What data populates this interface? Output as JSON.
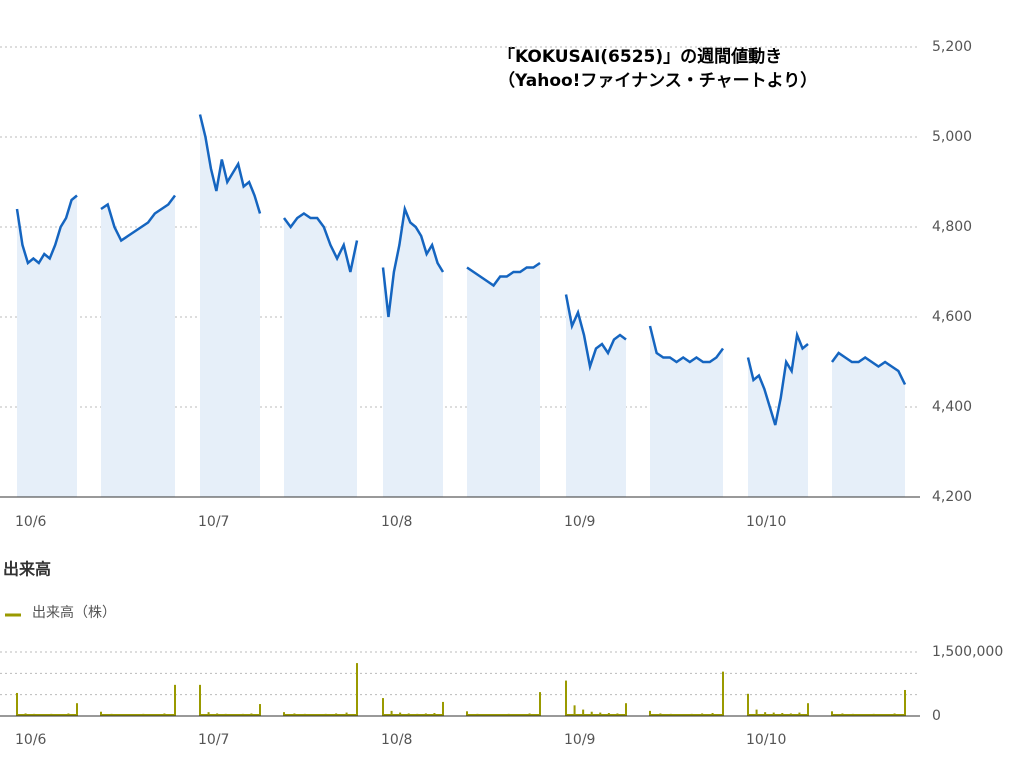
{
  "chart_data": [
    {
      "type": "line",
      "title": "「KOKUSAI(6525)」の週間値動き",
      "subtitle": "（Yahoo!ファイナンス・チャートより）",
      "categories": [
        "10/6",
        "10/7",
        "10/8",
        "10/9",
        "10/10"
      ],
      "color": "#1565c0",
      "area_color": "#e6eff9",
      "sessions": [
        [
          4840,
          4760,
          4720,
          4730,
          4720,
          4740,
          4730,
          4760,
          4800,
          4820,
          4860,
          4870
        ],
        [
          4840,
          4850,
          4800,
          4770,
          4780,
          4790,
          4800,
          4810,
          4830,
          4840,
          4850,
          4870
        ],
        [
          5050,
          5000,
          4930,
          4880,
          4950,
          4900,
          4920,
          4940,
          4890,
          4900,
          4870,
          4830
        ],
        [
          4820,
          4800,
          4820,
          4830,
          4820,
          4820,
          4800,
          4760,
          4730,
          4760,
          4700,
          4770
        ],
        [
          4710,
          4600,
          4700,
          4760,
          4840,
          4810,
          4800,
          4780,
          4740,
          4760,
          4720,
          4700
        ],
        [
          4710,
          4700,
          4690,
          4680,
          4670,
          4690,
          4690,
          4700,
          4700,
          4710,
          4710,
          4720
        ],
        [
          4650,
          4580,
          4610,
          4560,
          4490,
          4530,
          4540,
          4520,
          4550,
          4560,
          4550
        ],
        [
          4580,
          4520,
          4510,
          4510,
          4500,
          4510,
          4500,
          4510,
          4500,
          4500,
          4510,
          4530
        ],
        [
          4510,
          4460,
          4470,
          4440,
          4400,
          4360,
          4420,
          4500,
          4480,
          4560,
          4530,
          4540
        ],
        [
          4500,
          4520,
          4510,
          4500,
          4500,
          4510,
          4500,
          4490,
          4500,
          4490,
          4480,
          4450
        ]
      ],
      "ylim": [
        4200,
        5200
      ],
      "yticks": [
        {
          "value": 4200,
          "label": "4,200"
        },
        {
          "value": 4400,
          "label": "4,400"
        },
        {
          "value": 4600,
          "label": "4,600"
        },
        {
          "value": 4800,
          "label": "4,800"
        },
        {
          "value": 5000,
          "label": "5,000"
        },
        {
          "value": 5200,
          "label": "5,200"
        }
      ],
      "grid": true
    },
    {
      "type": "bar",
      "title": "出来高",
      "series": [
        {
          "name": "出来高（株）",
          "color": "#9a9a00",
          "sessions": [
            [
              540000,
              60000,
              50000,
              40000,
              50000,
              40000,
              60000,
              300000
            ],
            [
              100000,
              50000,
              40000,
              40000,
              50000,
              40000,
              60000,
              730000
            ],
            [
              730000,
              90000,
              60000,
              50000,
              40000,
              50000,
              60000,
              280000
            ],
            [
              90000,
              60000,
              50000,
              40000,
              50000,
              60000,
              80000,
              1240000
            ],
            [
              420000,
              120000,
              80000,
              60000,
              50000,
              60000,
              70000,
              330000
            ],
            [
              110000,
              50000,
              40000,
              40000,
              50000,
              40000,
              60000,
              560000
            ],
            [
              830000,
              250000,
              150000,
              100000,
              80000,
              70000,
              60000,
              300000
            ],
            [
              120000,
              60000,
              50000,
              40000,
              50000,
              60000,
              70000,
              1040000
            ],
            [
              520000,
              150000,
              90000,
              80000,
              70000,
              60000,
              80000,
              300000
            ],
            [
              110000,
              60000,
              50000,
              40000,
              50000,
              40000,
              60000,
              610000
            ]
          ]
        }
      ],
      "ylim": [
        0,
        1500000
      ],
      "yticks": [
        0,
        {
          "value": 500000,
          "label": null
        },
        {
          "value": 1000000,
          "label": null
        },
        {
          "value": 1500000,
          "label": "1,500,000"
        }
      ],
      "grid": true
    }
  ]
}
